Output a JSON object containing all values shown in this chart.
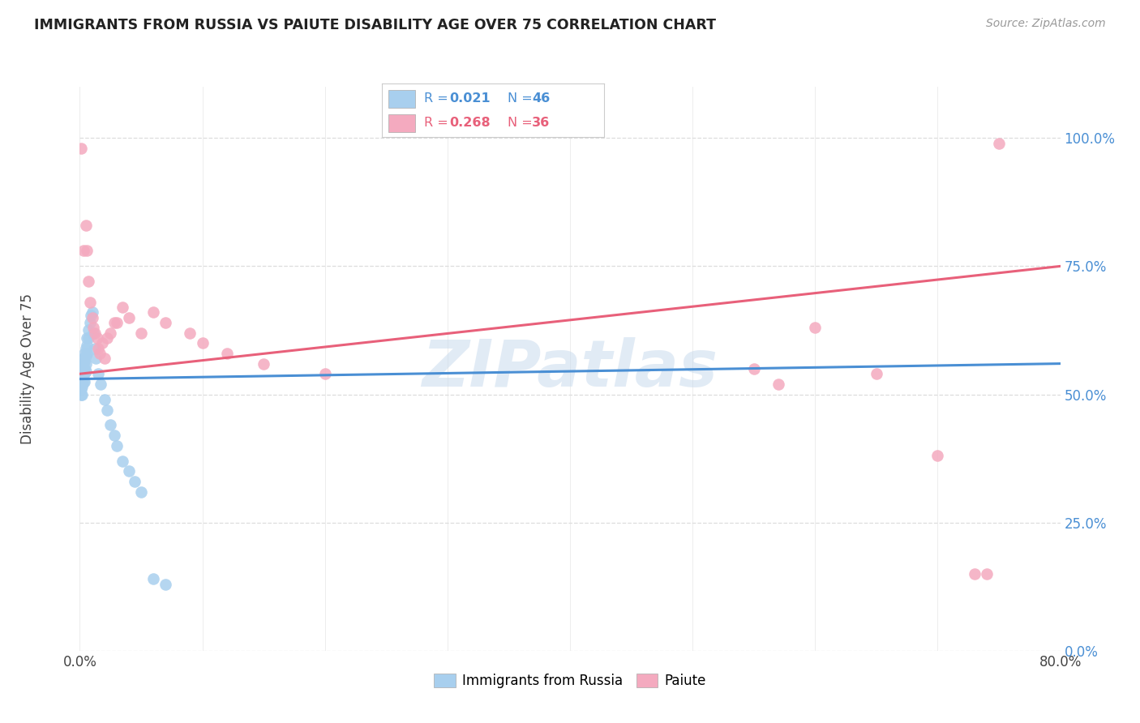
{
  "title": "IMMIGRANTS FROM RUSSIA VS PAIUTE DISABILITY AGE OVER 75 CORRELATION CHART",
  "source": "Source: ZipAtlas.com",
  "ylabel": "Disability Age Over 75",
  "ytick_labels": [
    "0.0%",
    "25.0%",
    "50.0%",
    "75.0%",
    "100.0%"
  ],
  "ytick_values": [
    0.0,
    0.25,
    0.5,
    0.75,
    1.0
  ],
  "xlim": [
    0.0,
    0.8
  ],
  "ylim": [
    0.0,
    1.1
  ],
  "legend_r1": "0.021",
  "legend_n1": "46",
  "legend_r2": "0.268",
  "legend_n2": "36",
  "color_blue": "#A8CFEE",
  "color_pink": "#F4AABF",
  "color_blue_dark": "#4A8FD4",
  "color_pink_dark": "#E8607A",
  "watermark_text": "ZIPatlas",
  "blue_scatter_x": [
    0.001,
    0.001,
    0.001,
    0.002,
    0.002,
    0.002,
    0.002,
    0.002,
    0.003,
    0.003,
    0.003,
    0.003,
    0.003,
    0.004,
    0.004,
    0.004,
    0.004,
    0.004,
    0.005,
    0.005,
    0.005,
    0.005,
    0.006,
    0.006,
    0.006,
    0.007,
    0.007,
    0.008,
    0.009,
    0.01,
    0.011,
    0.012,
    0.013,
    0.015,
    0.017,
    0.02,
    0.022,
    0.025,
    0.028,
    0.03,
    0.035,
    0.04,
    0.045,
    0.05,
    0.06,
    0.07
  ],
  "blue_scatter_y": [
    0.52,
    0.51,
    0.5,
    0.555,
    0.545,
    0.53,
    0.515,
    0.5,
    0.57,
    0.56,
    0.55,
    0.54,
    0.525,
    0.58,
    0.565,
    0.55,
    0.54,
    0.525,
    0.59,
    0.575,
    0.56,
    0.545,
    0.61,
    0.595,
    0.58,
    0.625,
    0.61,
    0.64,
    0.655,
    0.66,
    0.62,
    0.59,
    0.57,
    0.54,
    0.52,
    0.49,
    0.47,
    0.44,
    0.42,
    0.4,
    0.37,
    0.35,
    0.33,
    0.31,
    0.14,
    0.13
  ],
  "pink_scatter_x": [
    0.001,
    0.003,
    0.005,
    0.006,
    0.007,
    0.008,
    0.01,
    0.011,
    0.012,
    0.014,
    0.015,
    0.016,
    0.018,
    0.02,
    0.022,
    0.025,
    0.028,
    0.03,
    0.035,
    0.04,
    0.05,
    0.06,
    0.07,
    0.09,
    0.1,
    0.12,
    0.15,
    0.2,
    0.55,
    0.57,
    0.6,
    0.65,
    0.7,
    0.73,
    0.74,
    0.75
  ],
  "pink_scatter_y": [
    0.98,
    0.78,
    0.83,
    0.78,
    0.72,
    0.68,
    0.65,
    0.63,
    0.62,
    0.61,
    0.59,
    0.58,
    0.6,
    0.57,
    0.61,
    0.62,
    0.64,
    0.64,
    0.67,
    0.65,
    0.62,
    0.66,
    0.64,
    0.62,
    0.6,
    0.58,
    0.56,
    0.54,
    0.55,
    0.52,
    0.63,
    0.54,
    0.38,
    0.15,
    0.15,
    0.99
  ],
  "blue_line_x": [
    0.0,
    0.8
  ],
  "blue_line_y": [
    0.53,
    0.56
  ],
  "pink_line_x": [
    0.0,
    0.8
  ],
  "pink_line_y": [
    0.54,
    0.75
  ],
  "grid_color": "#DDDDDD",
  "background_color": "#FFFFFF",
  "xtick_positions": [
    0.0,
    0.1,
    0.2,
    0.3,
    0.4,
    0.5,
    0.6,
    0.7,
    0.8
  ]
}
